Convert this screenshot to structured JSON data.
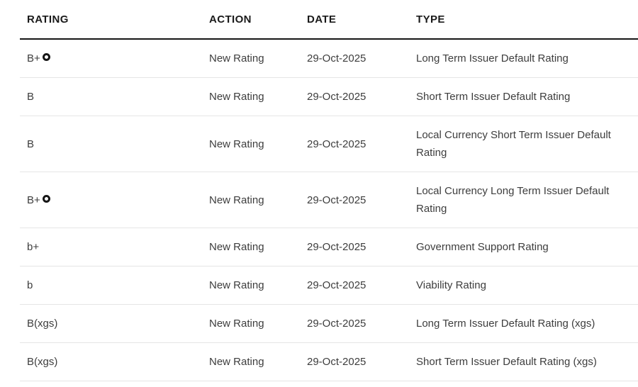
{
  "table": {
    "columns": [
      {
        "key": "rating",
        "label": "RATING"
      },
      {
        "key": "action",
        "label": "ACTION"
      },
      {
        "key": "date",
        "label": "DATE"
      },
      {
        "key": "type",
        "label": "TYPE"
      }
    ],
    "rows": [
      {
        "rating": "B+",
        "rating_icon": "rating-outlook-ring-icon",
        "action": "New Rating",
        "date": "29-Oct-2025",
        "type": "Long Term Issuer Default Rating"
      },
      {
        "rating": "B",
        "rating_icon": null,
        "action": "New Rating",
        "date": "29-Oct-2025",
        "type": "Short Term Issuer Default Rating"
      },
      {
        "rating": "B",
        "rating_icon": null,
        "action": "New Rating",
        "date": "29-Oct-2025",
        "type": "Local Currency Short Term Issuer Default Rating"
      },
      {
        "rating": "B+",
        "rating_icon": "rating-outlook-ring-icon",
        "action": "New Rating",
        "date": "29-Oct-2025",
        "type": "Local Currency Long Term Issuer Default Rating"
      },
      {
        "rating": "b+",
        "rating_icon": null,
        "action": "New Rating",
        "date": "29-Oct-2025",
        "type": "Government Support Rating"
      },
      {
        "rating": "b",
        "rating_icon": null,
        "action": "New Rating",
        "date": "29-Oct-2025",
        "type": "Viability Rating"
      },
      {
        "rating": "B(xgs)",
        "rating_icon": null,
        "action": "New Rating",
        "date": "29-Oct-2025",
        "type": "Long Term Issuer Default Rating (xgs)"
      },
      {
        "rating": "B(xgs)",
        "rating_icon": null,
        "action": "New Rating",
        "date": "29-Oct-2025",
        "type": "Short Term Issuer Default Rating (xgs)"
      }
    ],
    "colors": {
      "header_text": "#1a1a1a",
      "body_text": "#3d3d3d",
      "header_rule": "#161616",
      "row_divider": "#e5e5e5",
      "background": "#ffffff",
      "icon": "#161616"
    }
  }
}
